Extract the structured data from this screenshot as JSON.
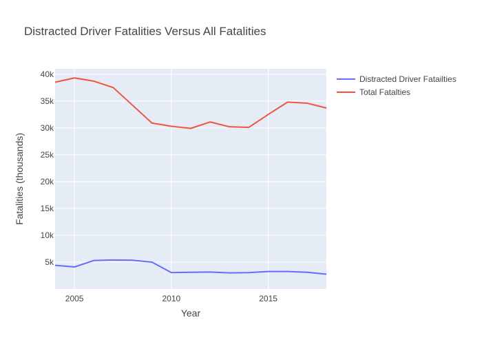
{
  "chart_data": {
    "type": "line",
    "title": "Distracted Driver Fatalities Versus All Fatalities",
    "xlabel": "Year",
    "ylabel": "Fatalities (thousands)",
    "x": [
      2004,
      2005,
      2006,
      2007,
      2008,
      2009,
      2010,
      2011,
      2012,
      2013,
      2014,
      2015,
      2016,
      2017,
      2018
    ],
    "xlim": [
      2004,
      2018
    ],
    "ylim": [
      0,
      41000
    ],
    "x_ticks": [
      2005,
      2010,
      2015
    ],
    "x_tick_labels": [
      "2005",
      "2010",
      "2015"
    ],
    "y_ticks": [
      5000,
      10000,
      15000,
      20000,
      25000,
      30000,
      35000,
      40000
    ],
    "y_tick_labels": [
      "5k",
      "10k",
      "15k",
      "20k",
      "25k",
      "30k",
      "35k",
      "40k"
    ],
    "grid": true,
    "legend_position": "right",
    "series": [
      {
        "name": "Distracted Driver Fatailties",
        "color": "#636efa",
        "values": [
          4400,
          4100,
          5300,
          5400,
          5350,
          5000,
          3050,
          3100,
          3150,
          3000,
          3050,
          3250,
          3250,
          3100,
          2750
        ]
      },
      {
        "name": "Total Fatalties",
        "color": "#ef553b",
        "values": [
          38500,
          39300,
          38700,
          37500,
          34200,
          30900,
          30300,
          29900,
          31100,
          30200,
          30100,
          32500,
          34800,
          34600,
          33700
        ]
      }
    ]
  },
  "colors": {
    "plot_background": "#e5ecf6",
    "grid": "#ffffff",
    "text": "#444444"
  }
}
